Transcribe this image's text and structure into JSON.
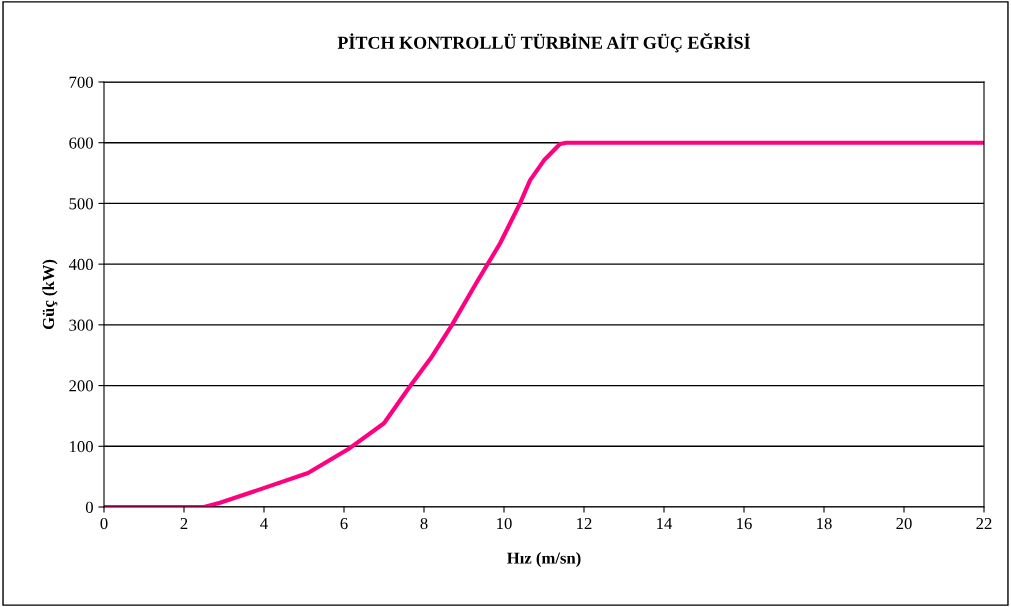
{
  "chart_data": {
    "type": "line",
    "title": "PİTCH KONTROLLÜ TÜRBİNE AİT GÜÇ EĞRİSİ",
    "xlabel": "Hız (m/sn)",
    "ylabel": "Güç (kW)",
    "x": [
      0,
      2.5,
      2.9,
      3.9,
      5.1,
      6.1,
      7.0,
      7.65,
      8.2,
      8.7,
      9.3,
      9.9,
      10.4,
      10.65,
      11.0,
      11.4,
      11.55,
      22
    ],
    "series": [
      {
        "color": "#ff0080",
        "values": [
          0,
          0,
          7,
          29,
          56,
          95,
          138,
          199,
          248,
          300,
          368,
          434,
          500,
          538,
          571,
          598,
          600,
          600
        ]
      }
    ],
    "xlim": [
      0,
      22
    ],
    "xticks": [
      0,
      2,
      4,
      6,
      8,
      10,
      12,
      14,
      16,
      18,
      20,
      22
    ],
    "ylim": [
      0,
      700
    ],
    "yticks": [
      0,
      100,
      200,
      300,
      400,
      500,
      600,
      700
    ],
    "grid": "y",
    "legend": false,
    "marker": "none",
    "line_style": "solid"
  }
}
